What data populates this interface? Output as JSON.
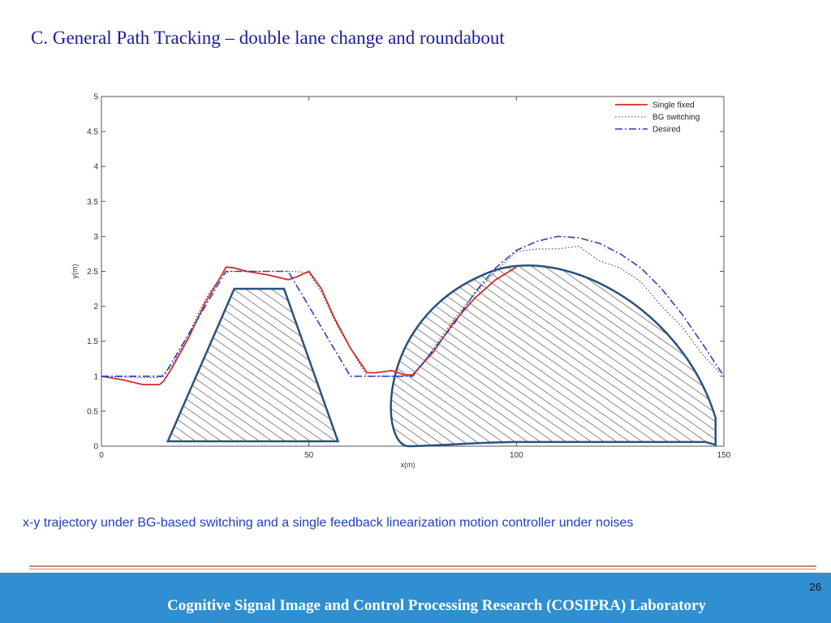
{
  "slide": {
    "title": "C. General Path Tracking – double lane change and roundabout",
    "caption": "x-y  trajectory under BG-based switching and a single feedback linearization motion controller under noises",
    "footer": "Cognitive Signal Image and Control Processing Research (COSIPRA) Laboratory",
    "page_number": "26"
  },
  "colors": {
    "title": "#1a1aa8",
    "caption": "#1f3fbf",
    "footer_bar": "#2f8fd0",
    "rule": "#c7877a",
    "single_fixed": "#d42a2a",
    "bg_switching": "#444444",
    "desired": "#2c3ec4",
    "obstacle_outline": "#27527f",
    "hatch": "#8a8a8a"
  },
  "chart_data": {
    "type": "line",
    "xlabel": "x(m)",
    "ylabel": "y(m)",
    "xlim": [
      0,
      150
    ],
    "ylim": [
      0,
      5
    ],
    "x_ticks": [
      "0",
      "50",
      "100",
      "150"
    ],
    "y_ticks": [
      "0",
      "0.5",
      "1",
      "1.5",
      "2",
      "2.5",
      "3",
      "3.5",
      "4",
      "4.5",
      "5"
    ],
    "grid": false,
    "legend_position": "top-right",
    "legend": [
      "Single fixed",
      "BG switching",
      "Desired"
    ],
    "series": [
      {
        "name": "Single fixed",
        "x": [
          0,
          5,
          10,
          14,
          15,
          17,
          21,
          25,
          29,
          30,
          32,
          35,
          40,
          45,
          47,
          50,
          53,
          56,
          60,
          64,
          66,
          70,
          73,
          75,
          80,
          85,
          90,
          95,
          100
        ],
        "y": [
          1.0,
          0.95,
          0.88,
          0.88,
          0.93,
          1.12,
          1.55,
          2.05,
          2.45,
          2.56,
          2.55,
          2.5,
          2.45,
          2.38,
          2.42,
          2.5,
          2.25,
          1.85,
          1.4,
          1.05,
          1.05,
          1.08,
          1.02,
          1.02,
          1.35,
          1.78,
          2.12,
          2.38,
          2.56
        ]
      },
      {
        "name": "BG switching",
        "x": [
          0,
          10,
          14,
          17,
          21,
          25,
          29,
          31,
          40,
          46,
          50,
          53,
          57,
          61,
          64,
          66,
          70,
          73,
          75,
          80,
          85,
          90,
          95,
          100,
          105,
          110,
          115,
          120,
          125,
          130,
          135,
          140,
          145,
          149
        ],
        "y": [
          1.0,
          0.98,
          0.98,
          1.15,
          1.6,
          2.1,
          2.45,
          2.5,
          2.5,
          2.5,
          2.48,
          2.2,
          1.7,
          1.3,
          1.0,
          1.0,
          1.0,
          1.0,
          1.0,
          1.4,
          1.82,
          2.18,
          2.5,
          2.78,
          2.82,
          2.82,
          2.86,
          2.65,
          2.55,
          2.35,
          2.0,
          1.7,
          1.3,
          1.05
        ]
      },
      {
        "name": "Desired",
        "x": [
          0,
          10,
          15,
          30,
          45,
          60,
          65,
          70,
          75,
          85,
          90,
          95,
          100,
          105,
          110,
          115,
          120,
          125,
          130,
          135,
          140,
          145,
          150
        ],
        "y": [
          1.0,
          1.0,
          1.0,
          2.5,
          2.5,
          1.0,
          1.0,
          1.0,
          1.0,
          1.75,
          2.2,
          2.55,
          2.8,
          2.93,
          3.0,
          2.98,
          2.9,
          2.75,
          2.55,
          2.25,
          1.88,
          1.45,
          1.0
        ]
      }
    ]
  }
}
